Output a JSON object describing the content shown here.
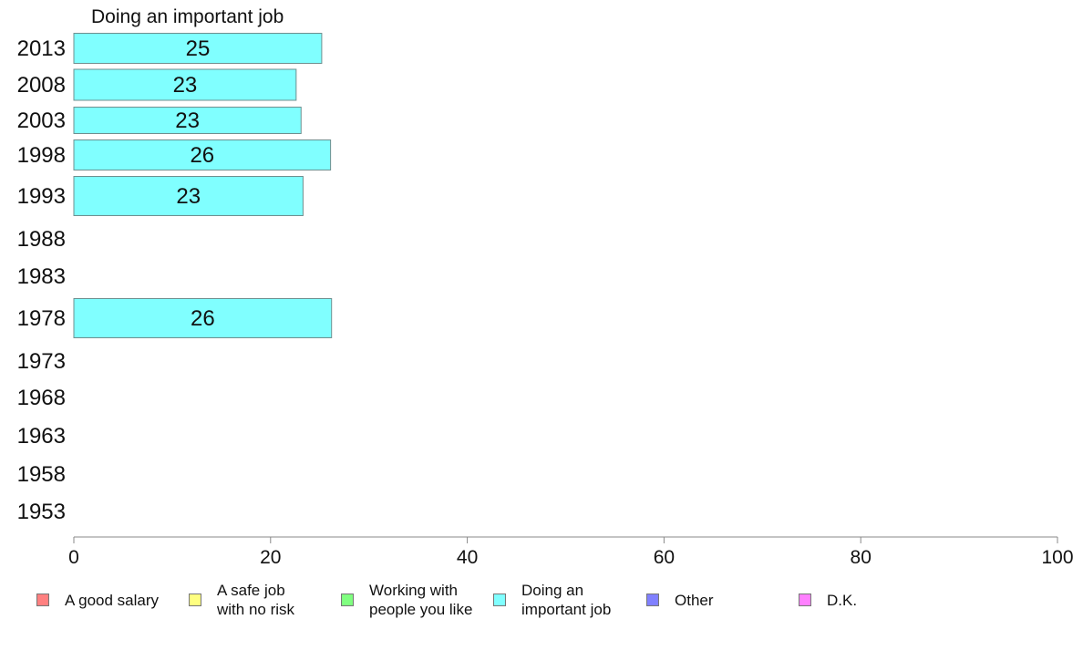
{
  "chart_data": {
    "type": "bar",
    "orientation": "horizontal",
    "title": "Doing an important job",
    "categories": [
      "2013",
      "2008",
      "2003",
      "1998",
      "1993",
      "1988",
      "1983",
      "1978",
      "1973",
      "1968",
      "1963",
      "1958",
      "1953"
    ],
    "series": [
      {
        "name": "Doing an important job",
        "color": "#80ffff",
        "values": [
          25.2,
          22.6,
          23.1,
          26.1,
          23.3,
          null,
          null,
          26.2,
          null,
          null,
          null,
          null,
          null
        ],
        "labels": [
          "25",
          "23",
          "23",
          "26",
          "23",
          "",
          "",
          "26",
          "",
          "",
          "",
          "",
          ""
        ]
      }
    ],
    "xlim": [
      0,
      100
    ],
    "xticks": [
      "0",
      "20",
      "40",
      "60",
      "80",
      "100"
    ],
    "xlabel": "",
    "ylabel": "",
    "grid": false,
    "legend": {
      "placement": "bottom",
      "items": [
        {
          "label": "A good salary",
          "color": "#ff8080"
        },
        {
          "label": "A safe job\nwith no risk",
          "color": "#ffff80"
        },
        {
          "label": "Working with\npeople you like",
          "color": "#80ff80"
        },
        {
          "label": "Doing an\nimportant job",
          "color": "#80ffff"
        },
        {
          "label": "Other",
          "color": "#8080ff"
        },
        {
          "label": "D.K.",
          "color": "#ff80ff"
        }
      ]
    }
  }
}
